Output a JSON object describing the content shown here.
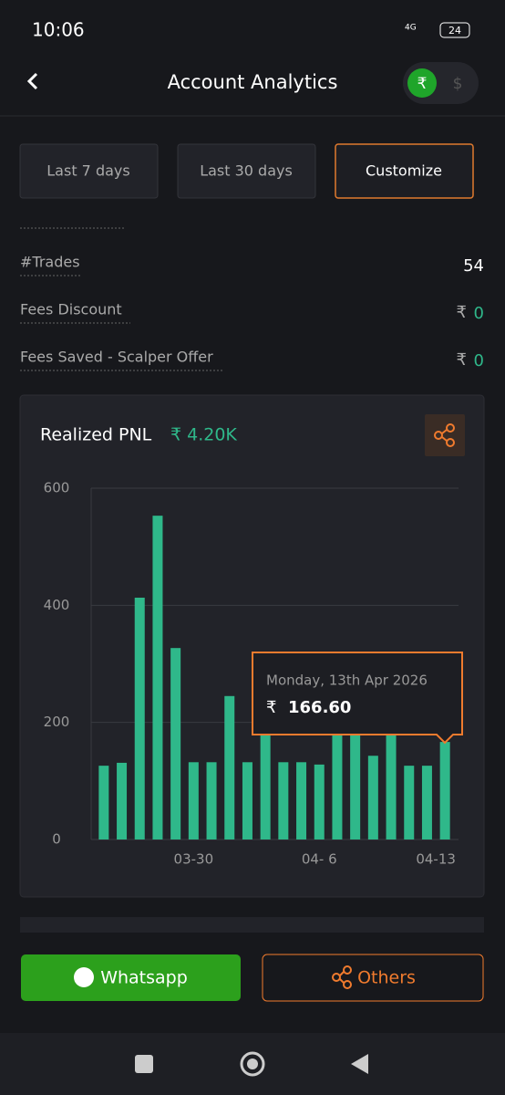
{
  "status_bar": {
    "time": "10:06",
    "network": "4G",
    "battery": "24"
  },
  "header": {
    "title": "Account Analytics",
    "currency_toggle": [
      "₹",
      "$"
    ]
  },
  "filters": [
    "Last 7 days",
    "Last 30 days",
    "Customize"
  ],
  "stats": [
    {
      "label": "#Trades",
      "value": "54"
    },
    {
      "label": "Fees Discount",
      "currency": "₹",
      "value": "0"
    },
    {
      "label": "Fees Saved - Scalper Offer",
      "currency": "₹",
      "value": "0"
    }
  ],
  "chart_data": {
    "type": "bar",
    "title": "Realized PNL",
    "subtitle": "₹ 4.20K",
    "color": "#2fb88a",
    "categories": [
      null,
      null,
      null,
      null,
      null,
      "03-30",
      null,
      null,
      null,
      null,
      null,
      null,
      "04- 6",
      null,
      null,
      null,
      null,
      null,
      null,
      "04-13"
    ],
    "values": [
      126,
      131,
      413,
      553,
      327,
      132,
      132,
      245,
      132,
      185,
      132,
      132,
      128,
      185,
      185,
      143,
      185,
      126,
      126,
      166.6
    ],
    "ylim": [
      0,
      600
    ],
    "yticks": [
      0,
      200,
      400,
      600
    ],
    "grid": true,
    "tooltip": {
      "label": "Monday, 13th Apr 2026",
      "currency": "₹",
      "value": "166.60"
    }
  },
  "buttons": [
    "Whatsapp",
    "Others"
  ]
}
